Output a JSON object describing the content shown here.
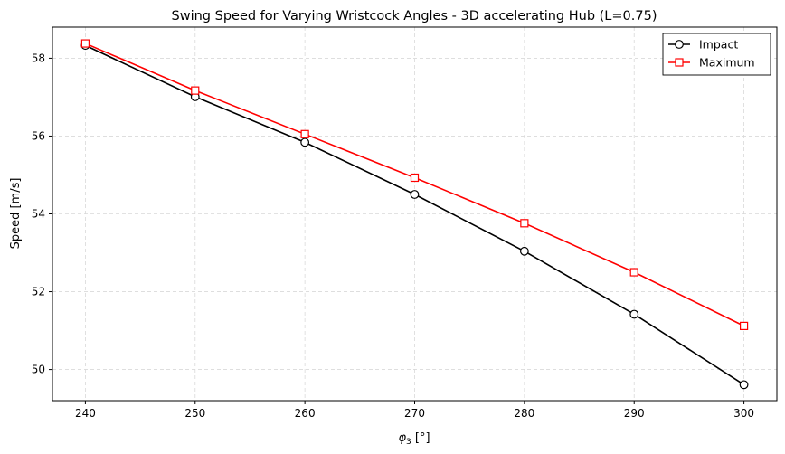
{
  "chart_data": {
    "type": "line",
    "title": "Swing Speed for Varying Wristcock Angles - 3D accelerating Hub (L=0.75)",
    "xlabel_symbol": "φ",
    "xlabel_subscript": "3",
    "xlabel_unit": " [°]",
    "ylabel": "Speed [m/s]",
    "xlim": [
      237,
      303
    ],
    "ylim": [
      49.2,
      58.8
    ],
    "x_ticks": [
      240,
      250,
      260,
      270,
      280,
      290,
      300
    ],
    "y_ticks": [
      50,
      52,
      54,
      56,
      58
    ],
    "grid": true,
    "legend_position": "top-right",
    "x": [
      240,
      250,
      260,
      270,
      280,
      290,
      300
    ],
    "series": [
      {
        "name": "Impact",
        "color": "#000000",
        "marker": "circle",
        "values": [
          58.33,
          57.01,
          55.84,
          54.5,
          53.04,
          51.42,
          49.61
        ]
      },
      {
        "name": "Maximum",
        "color": "#ff0000",
        "marker": "square",
        "values": [
          58.38,
          57.17,
          56.05,
          54.93,
          53.76,
          52.5,
          51.12
        ]
      }
    ]
  }
}
